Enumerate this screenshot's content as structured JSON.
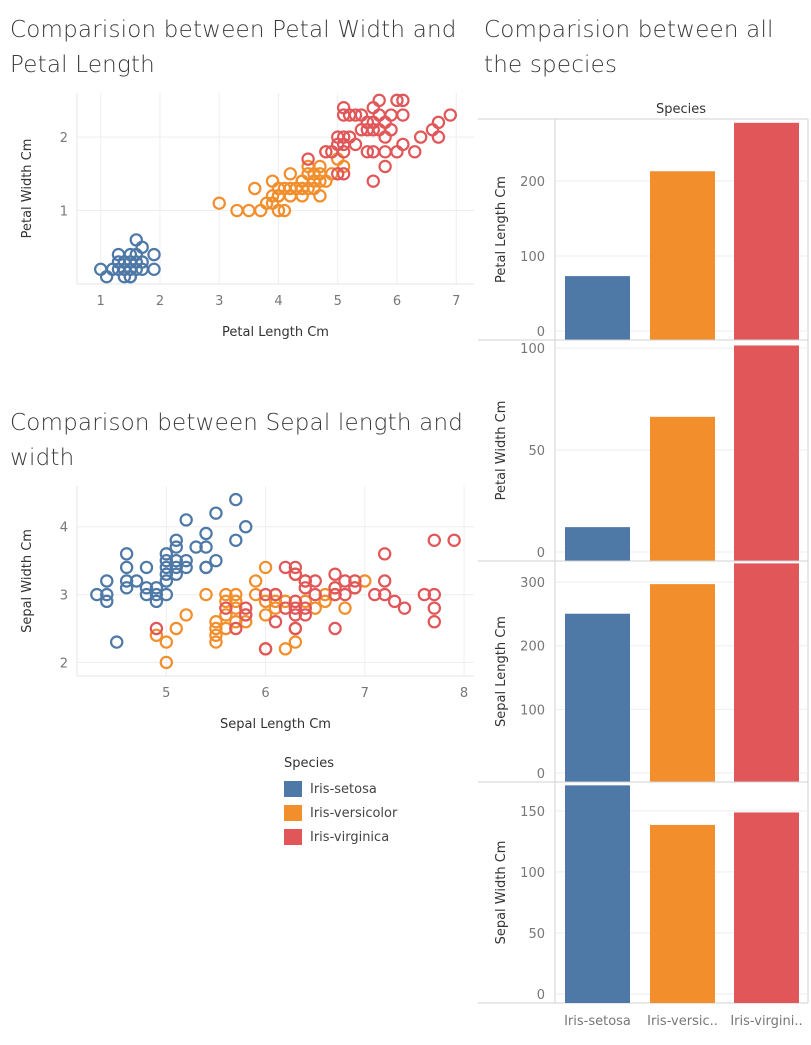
{
  "titles": {
    "petal_title": "Comparision between Petal Width and Petal Length",
    "species_title": "Comparision between all the species",
    "sepal_title": "Comparison between Sepal length and width"
  },
  "colors": {
    "Iris-setosa": "#4e79a7",
    "Iris-versicolor": "#f28e2b",
    "Iris-virginica": "#e15759",
    "grid": "#eeeeee",
    "axis": "#cfcfcf"
  },
  "legend": {
    "title": "Species",
    "items": [
      "Iris-setosa",
      "Iris-versicolor",
      "Iris-virginica"
    ]
  },
  "chart_data": [
    {
      "type": "scatter",
      "id": "petal",
      "xlabel": "Petal Length Cm",
      "ylabel": "Petal Width Cm",
      "xlim": [
        0.6,
        7.3
      ],
      "ylim": [
        0.0,
        2.6
      ],
      "xticks": [
        1,
        2,
        3,
        4,
        5,
        6,
        7
      ],
      "yticks": [
        1,
        2
      ],
      "grid": true,
      "series": [
        {
          "name": "Iris-setosa",
          "points": [
            [
              1.0,
              0.2
            ],
            [
              1.1,
              0.1
            ],
            [
              1.2,
              0.2
            ],
            [
              1.3,
              0.2
            ],
            [
              1.3,
              0.3
            ],
            [
              1.3,
              0.4
            ],
            [
              1.4,
              0.1
            ],
            [
              1.4,
              0.2
            ],
            [
              1.4,
              0.3
            ],
            [
              1.5,
              0.1
            ],
            [
              1.5,
              0.2
            ],
            [
              1.5,
              0.3
            ],
            [
              1.5,
              0.4
            ],
            [
              1.6,
              0.2
            ],
            [
              1.6,
              0.4
            ],
            [
              1.6,
              0.6
            ],
            [
              1.7,
              0.2
            ],
            [
              1.7,
              0.3
            ],
            [
              1.7,
              0.5
            ],
            [
              1.9,
              0.2
            ],
            [
              1.9,
              0.4
            ],
            [
              1.5,
              0.1
            ],
            [
              1.4,
              0.3
            ],
            [
              1.6,
              0.3
            ]
          ]
        },
        {
          "name": "Iris-versicolor",
          "points": [
            [
              3.0,
              1.1
            ],
            [
              3.3,
              1.0
            ],
            [
              3.5,
              1.0
            ],
            [
              3.6,
              1.3
            ],
            [
              3.7,
              1.0
            ],
            [
              3.8,
              1.1
            ],
            [
              3.9,
              1.1
            ],
            [
              3.9,
              1.2
            ],
            [
              3.9,
              1.4
            ],
            [
              4.0,
              1.0
            ],
            [
              4.0,
              1.2
            ],
            [
              4.0,
              1.3
            ],
            [
              4.1,
              1.0
            ],
            [
              4.1,
              1.3
            ],
            [
              4.2,
              1.2
            ],
            [
              4.2,
              1.3
            ],
            [
              4.2,
              1.5
            ],
            [
              4.3,
              1.3
            ],
            [
              4.4,
              1.2
            ],
            [
              4.4,
              1.3
            ],
            [
              4.4,
              1.4
            ],
            [
              4.5,
              1.3
            ],
            [
              4.5,
              1.5
            ],
            [
              4.5,
              1.6
            ],
            [
              4.6,
              1.3
            ],
            [
              4.6,
              1.4
            ],
            [
              4.6,
              1.5
            ],
            [
              4.7,
              1.2
            ],
            [
              4.7,
              1.4
            ],
            [
              4.7,
              1.5
            ],
            [
              4.7,
              1.6
            ],
            [
              4.8,
              1.4
            ],
            [
              4.8,
              1.8
            ],
            [
              4.9,
              1.5
            ],
            [
              5.0,
              1.7
            ],
            [
              5.1,
              1.6
            ],
            [
              4.4,
              1.4
            ],
            [
              4.3,
              1.3
            ],
            [
              4.0,
              1.2
            ]
          ]
        },
        {
          "name": "Iris-virginica",
          "points": [
            [
              4.5,
              1.7
            ],
            [
              4.8,
              1.8
            ],
            [
              4.9,
              1.8
            ],
            [
              5.0,
              1.5
            ],
            [
              5.0,
              1.9
            ],
            [
              5.0,
              2.0
            ],
            [
              5.1,
              1.5
            ],
            [
              5.1,
              1.8
            ],
            [
              5.1,
              1.9
            ],
            [
              5.1,
              2.0
            ],
            [
              5.1,
              2.3
            ],
            [
              5.1,
              2.4
            ],
            [
              5.2,
              2.0
            ],
            [
              5.2,
              2.3
            ],
            [
              5.3,
              1.9
            ],
            [
              5.3,
              2.3
            ],
            [
              5.4,
              2.1
            ],
            [
              5.4,
              2.3
            ],
            [
              5.5,
              1.8
            ],
            [
              5.5,
              2.1
            ],
            [
              5.6,
              1.4
            ],
            [
              5.6,
              1.8
            ],
            [
              5.6,
              2.1
            ],
            [
              5.6,
              2.2
            ],
            [
              5.6,
              2.4
            ],
            [
              5.7,
              2.1
            ],
            [
              5.7,
              2.3
            ],
            [
              5.7,
              2.5
            ],
            [
              5.8,
              1.6
            ],
            [
              5.8,
              1.8
            ],
            [
              5.8,
              2.2
            ],
            [
              5.9,
              2.1
            ],
            [
              5.9,
              2.3
            ],
            [
              6.0,
              1.8
            ],
            [
              6.0,
              2.5
            ],
            [
              6.1,
              1.9
            ],
            [
              6.1,
              2.3
            ],
            [
              6.1,
              2.5
            ],
            [
              6.3,
              1.8
            ],
            [
              6.4,
              2.0
            ],
            [
              6.6,
              2.1
            ],
            [
              6.7,
              2.0
            ],
            [
              6.7,
              2.2
            ],
            [
              6.9,
              2.3
            ],
            [
              5.8,
              2.0
            ],
            [
              5.5,
              2.2
            ]
          ]
        }
      ]
    },
    {
      "type": "scatter",
      "id": "sepal",
      "xlabel": "Sepal Length Cm",
      "ylabel": "Sepal Width Cm",
      "xlim": [
        4.1,
        8.1
      ],
      "ylim": [
        1.8,
        4.6
      ],
      "xticks": [
        5,
        6,
        7,
        8
      ],
      "yticks": [
        2,
        3,
        4
      ],
      "grid": true,
      "series": [
        {
          "name": "Iris-setosa",
          "points": [
            [
              4.3,
              3.0
            ],
            [
              4.4,
              2.9
            ],
            [
              4.4,
              3.0
            ],
            [
              4.4,
              3.2
            ],
            [
              4.5,
              2.3
            ],
            [
              4.6,
              3.1
            ],
            [
              4.6,
              3.2
            ],
            [
              4.6,
              3.4
            ],
            [
              4.6,
              3.6
            ],
            [
              4.7,
              3.2
            ],
            [
              4.8,
              3.0
            ],
            [
              4.8,
              3.1
            ],
            [
              4.8,
              3.4
            ],
            [
              4.9,
              3.0
            ],
            [
              4.9,
              3.1
            ],
            [
              5.0,
              3.0
            ],
            [
              5.0,
              3.2
            ],
            [
              5.0,
              3.3
            ],
            [
              5.0,
              3.4
            ],
            [
              5.0,
              3.5
            ],
            [
              5.0,
              3.6
            ],
            [
              5.1,
              3.3
            ],
            [
              5.1,
              3.4
            ],
            [
              5.1,
              3.5
            ],
            [
              5.1,
              3.7
            ],
            [
              5.1,
              3.8
            ],
            [
              5.2,
              3.4
            ],
            [
              5.2,
              3.5
            ],
            [
              5.2,
              4.1
            ],
            [
              5.3,
              3.7
            ],
            [
              5.4,
              3.4
            ],
            [
              5.4,
              3.7
            ],
            [
              5.4,
              3.9
            ],
            [
              5.5,
              3.5
            ],
            [
              5.5,
              4.2
            ],
            [
              5.7,
              3.8
            ],
            [
              5.7,
              4.4
            ],
            [
              5.8,
              4.0
            ],
            [
              5.4,
              3.4
            ],
            [
              4.9,
              2.9
            ]
          ]
        },
        {
          "name": "Iris-versicolor",
          "points": [
            [
              4.9,
              2.4
            ],
            [
              5.0,
              2.0
            ],
            [
              5.0,
              2.3
            ],
            [
              5.1,
              2.5
            ],
            [
              5.2,
              2.7
            ],
            [
              5.4,
              3.0
            ],
            [
              5.5,
              2.3
            ],
            [
              5.5,
              2.4
            ],
            [
              5.5,
              2.5
            ],
            [
              5.5,
              2.6
            ],
            [
              5.6,
              2.5
            ],
            [
              5.6,
              2.7
            ],
            [
              5.6,
              2.9
            ],
            [
              5.6,
              3.0
            ],
            [
              5.7,
              2.6
            ],
            [
              5.7,
              2.8
            ],
            [
              5.7,
              2.9
            ],
            [
              5.7,
              3.0
            ],
            [
              5.8,
              2.6
            ],
            [
              5.8,
              2.7
            ],
            [
              5.9,
              3.0
            ],
            [
              5.9,
              3.2
            ],
            [
              6.0,
              2.2
            ],
            [
              6.0,
              2.7
            ],
            [
              6.0,
              2.9
            ],
            [
              6.0,
              3.4
            ],
            [
              6.1,
              2.8
            ],
            [
              6.1,
              2.9
            ],
            [
              6.1,
              3.0
            ],
            [
              6.2,
              2.2
            ],
            [
              6.2,
              2.9
            ],
            [
              6.3,
              2.3
            ],
            [
              6.3,
              2.5
            ],
            [
              6.3,
              3.3
            ],
            [
              6.4,
              2.9
            ],
            [
              6.4,
              3.2
            ],
            [
              6.5,
              2.8
            ],
            [
              6.6,
              2.9
            ],
            [
              6.6,
              3.0
            ],
            [
              6.7,
              3.0
            ],
            [
              6.7,
              3.1
            ],
            [
              6.8,
              2.8
            ],
            [
              6.9,
              3.1
            ],
            [
              7.0,
              3.2
            ]
          ]
        },
        {
          "name": "Iris-virginica",
          "points": [
            [
              4.9,
              2.5
            ],
            [
              5.6,
              2.8
            ],
            [
              5.7,
              2.5
            ],
            [
              5.8,
              2.7
            ],
            [
              5.8,
              2.8
            ],
            [
              6.0,
              2.2
            ],
            [
              6.0,
              3.0
            ],
            [
              6.1,
              2.6
            ],
            [
              6.1,
              3.0
            ],
            [
              6.2,
              2.8
            ],
            [
              6.2,
              3.4
            ],
            [
              6.3,
              2.5
            ],
            [
              6.3,
              2.7
            ],
            [
              6.3,
              2.8
            ],
            [
              6.3,
              2.9
            ],
            [
              6.3,
              3.3
            ],
            [
              6.3,
              3.4
            ],
            [
              6.4,
              2.7
            ],
            [
              6.4,
              2.8
            ],
            [
              6.4,
              3.1
            ],
            [
              6.4,
              3.2
            ],
            [
              6.5,
              3.0
            ],
            [
              6.5,
              3.2
            ],
            [
              6.7,
              2.5
            ],
            [
              6.7,
              3.0
            ],
            [
              6.7,
              3.1
            ],
            [
              6.7,
              3.3
            ],
            [
              6.8,
              3.0
            ],
            [
              6.8,
              3.2
            ],
            [
              6.9,
              3.1
            ],
            [
              6.9,
              3.2
            ],
            [
              7.1,
              3.0
            ],
            [
              7.2,
              3.0
            ],
            [
              7.2,
              3.2
            ],
            [
              7.2,
              3.6
            ],
            [
              7.3,
              2.9
            ],
            [
              7.4,
              2.8
            ],
            [
              7.6,
              3.0
            ],
            [
              7.7,
              2.6
            ],
            [
              7.7,
              2.8
            ],
            [
              7.7,
              3.0
            ],
            [
              7.7,
              3.8
            ],
            [
              7.9,
              3.8
            ]
          ]
        }
      ]
    },
    {
      "type": "bar",
      "id": "species_bars",
      "header": "Species",
      "categories": [
        "Iris-setosa",
        "Iris-versicolor",
        "Iris-virginica"
      ],
      "category_labels": [
        "Iris-setosa",
        "Iris-versic..",
        "Iris-virgini.."
      ],
      "panels": [
        {
          "ylabel": "Petal Length Cm",
          "values": [
            73.2,
            213.0,
            277.6
          ],
          "ymax": 280,
          "yticks": [
            0,
            100,
            200
          ]
        },
        {
          "ylabel": "Petal Width Cm",
          "values": [
            12.2,
            66.3,
            101.3
          ],
          "ymax": 103,
          "yticks": [
            0,
            50,
            100
          ]
        },
        {
          "ylabel": "Sepal Length Cm",
          "values": [
            250.3,
            296.8,
            329.4
          ],
          "ymax": 330,
          "yticks": [
            0,
            100,
            200,
            300
          ]
        },
        {
          "ylabel": "Sepal Width Cm",
          "values": [
            170.9,
            138.5,
            148.7
          ],
          "ymax": 172,
          "yticks": [
            0,
            50,
            100,
            150
          ]
        }
      ]
    }
  ]
}
